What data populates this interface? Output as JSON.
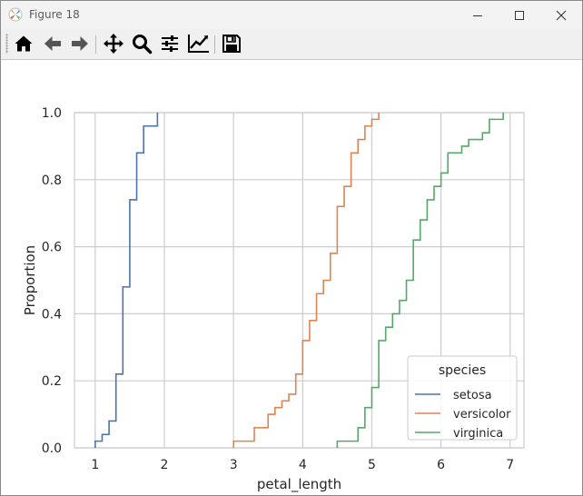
{
  "window": {
    "title": "Figure 18"
  },
  "toolbar": {
    "items": [
      {
        "name": "home-icon",
        "tooltip": "Home"
      },
      {
        "name": "back-icon",
        "tooltip": "Back"
      },
      {
        "name": "forward-icon",
        "tooltip": "Forward"
      },
      {
        "name": "pan-icon",
        "tooltip": "Pan"
      },
      {
        "name": "zoom-icon",
        "tooltip": "Zoom"
      },
      {
        "name": "subplots-icon",
        "tooltip": "Subplots"
      },
      {
        "name": "customize-icon",
        "tooltip": "Customize"
      },
      {
        "name": "save-icon",
        "tooltip": "Save"
      }
    ]
  },
  "chart_data": {
    "type": "line",
    "drawstyle": "steps-post",
    "xlabel": "petal_length",
    "ylabel": "Proportion",
    "xlim": [
      0.7,
      7.2
    ],
    "ylim": [
      0,
      1
    ],
    "xticks": [
      "1",
      "2",
      "3",
      "4",
      "5",
      "6",
      "7"
    ],
    "yticks": [
      "0.0",
      "0.2",
      "0.4",
      "0.6",
      "0.8",
      "1.0"
    ],
    "grid": true,
    "legend": {
      "title": "species",
      "position": "lower right"
    },
    "colors": {
      "setosa": "#4c72b0",
      "versicolor": "#dd8452",
      "virginica": "#55a868",
      "grid": "#cccccc",
      "spine": "#cccccc",
      "text": "#262626"
    },
    "series": [
      {
        "name": "setosa",
        "x": [
          1.0,
          1.1,
          1.2,
          1.3,
          1.4,
          1.5,
          1.6,
          1.7,
          1.9
        ],
        "y": [
          0.02,
          0.04,
          0.08,
          0.22,
          0.48,
          0.74,
          0.88,
          0.96,
          1.0
        ]
      },
      {
        "name": "versicolor",
        "x": [
          3.0,
          3.3,
          3.5,
          3.6,
          3.7,
          3.8,
          3.9,
          4.0,
          4.1,
          4.2,
          4.3,
          4.4,
          4.5,
          4.6,
          4.7,
          4.8,
          4.9,
          5.0,
          5.1
        ],
        "y": [
          0.02,
          0.06,
          0.1,
          0.12,
          0.14,
          0.16,
          0.22,
          0.32,
          0.38,
          0.46,
          0.5,
          0.58,
          0.72,
          0.78,
          0.88,
          0.92,
          0.96,
          0.98,
          1.0
        ]
      },
      {
        "name": "virginica",
        "x": [
          4.5,
          4.8,
          4.9,
          5.0,
          5.1,
          5.2,
          5.3,
          5.4,
          5.5,
          5.6,
          5.7,
          5.8,
          5.9,
          6.0,
          6.1,
          6.3,
          6.4,
          6.6,
          6.7,
          6.9
        ],
        "y": [
          0.02,
          0.06,
          0.12,
          0.18,
          0.32,
          0.36,
          0.4,
          0.44,
          0.5,
          0.62,
          0.68,
          0.74,
          0.78,
          0.82,
          0.88,
          0.9,
          0.92,
          0.94,
          0.98,
          1.0
        ]
      }
    ]
  }
}
